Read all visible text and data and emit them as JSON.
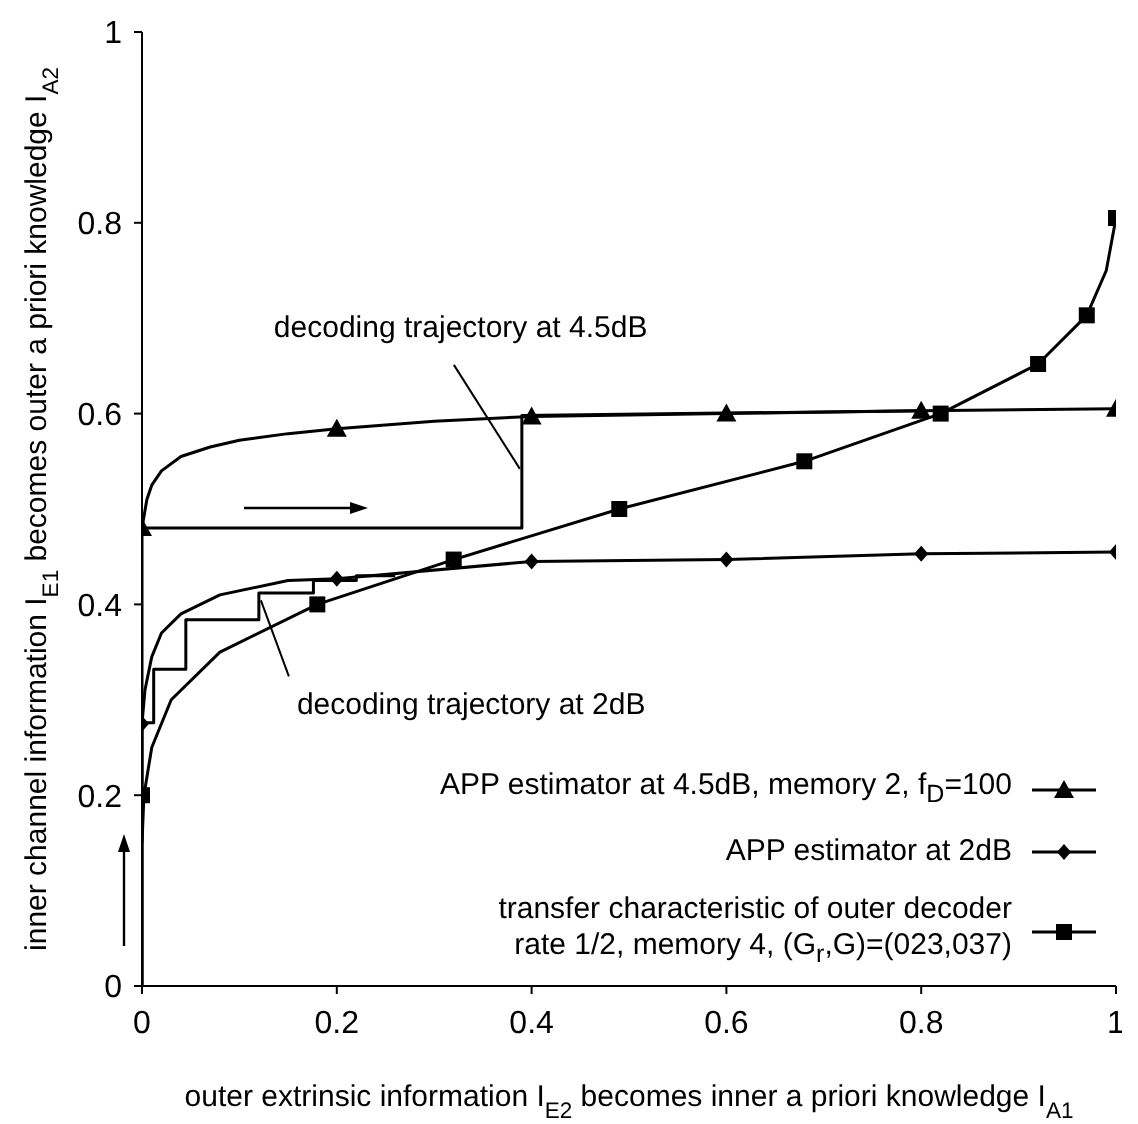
{
  "chart_data": {
    "type": "line",
    "xlabel": "outer extrinsic information I$_{E2}$ becomes inner a priori knowledge I$_{A1}$",
    "ylabel": "inner channel information I$_{E1}$ becomes outer a priori knowledge I$_{A2}$",
    "xlim": [
      0,
      1
    ],
    "xticks": [
      0,
      0.2,
      0.4,
      0.6,
      0.8,
      1
    ],
    "ylim": [
      0,
      1
    ],
    "yticks": [
      0,
      0.2,
      0.4,
      0.6,
      0.8,
      1
    ],
    "legend": "bottom right",
    "annotations": [
      {
        "text": "decoding trajectory at 4.5dB",
        "x": 0.39,
        "y": 0.54
      },
      {
        "text": "decoding trajectory at 2dB",
        "x": 0.12,
        "y": 0.4
      }
    ],
    "series": [
      {
        "type": "line",
        "color": "#000000",
        "marker": "none",
        "x": [
          0,
          0.005,
          0.01,
          0.02,
          0.04,
          0.07,
          0.1,
          0.15,
          0.2,
          0.3,
          0.4,
          0.6,
          0.8,
          1
        ],
        "values": [
          0.48,
          0.51,
          0.525,
          0.54,
          0.555,
          0.565,
          0.572,
          0.579,
          0.584,
          0.592,
          0.597,
          0.6,
          0.603,
          0.605
        ]
      },
      {
        "type": "line",
        "color": "#000000",
        "marker": "none",
        "x": [
          0,
          0.003,
          0.01,
          0.02,
          0.04,
          0.08,
          0.15,
          0.2,
          0.4,
          0.6,
          0.8,
          1
        ],
        "values": [
          0.275,
          0.31,
          0.345,
          0.37,
          0.39,
          0.41,
          0.425,
          0.427,
          0.445,
          0.447,
          0.453,
          0.455
        ]
      },
      {
        "type": "line",
        "color": "#000000",
        "marker": "none",
        "x": [
          0,
          0.002,
          0.01,
          0.03,
          0.08,
          0.18,
          0.32,
          0.49,
          0.68,
          0.82,
          0.92,
          0.97,
          0.99,
          1
        ],
        "values": [
          0.15,
          0.2,
          0.25,
          0.3,
          0.35,
          0.4,
          0.447,
          0.5,
          0.55,
          0.6,
          0.652,
          0.703,
          0.75,
          0.805
        ]
      },
      {
        "type": "line",
        "color": "#000000",
        "marker": "none",
        "x": [
          0,
          0,
          0.39,
          0.39,
          0.8
        ],
        "values": [
          0,
          0.48,
          0.48,
          0.598,
          0.603
        ]
      },
      {
        "type": "line",
        "color": "#000000",
        "marker": "none",
        "x": [
          0,
          0,
          0.012,
          0.012,
          0.045,
          0.045,
          0.12,
          0.12,
          0.176,
          0.176,
          0.22,
          0.22,
          0.26
        ],
        "values": [
          0,
          0.276,
          0.276,
          0.332,
          0.332,
          0.384,
          0.384,
          0.412,
          0.412,
          0.425,
          0.425,
          0.43,
          0.43
        ]
      },
      {
        "type": "scatter",
        "name": "APP estimator at 4.5dB, memory 2, f$_{D}$=100",
        "color": "#000000",
        "marker": "triangle",
        "x": [
          0,
          0.2,
          0.4,
          0.6,
          0.8,
          1
        ],
        "values": [
          0.48,
          0.584,
          0.597,
          0.6,
          0.603,
          0.605
        ]
      },
      {
        "type": "scatter",
        "name": "APP estimator at 2dB",
        "color": "#000000",
        "marker": "diamond",
        "x": [
          0,
          0.2,
          0.4,
          0.6,
          0.8,
          1
        ],
        "values": [
          0.275,
          0.427,
          0.445,
          0.447,
          0.453,
          0.455
        ]
      },
      {
        "type": "scatter",
        "name": "transfer characteristic of outer decoder rate 1/2, memory 4, (G$_{r}$,G)=(023,037)",
        "color": "#000000",
        "marker": "square",
        "x": [
          0,
          0.18,
          0.32,
          0.49,
          0.68,
          0.82,
          0.92,
          0.97,
          1
        ],
        "values": [
          0.2,
          0.4,
          0.447,
          0.5,
          0.55,
          0.6,
          0.652,
          0.703,
          0.805
        ]
      }
    ]
  }
}
